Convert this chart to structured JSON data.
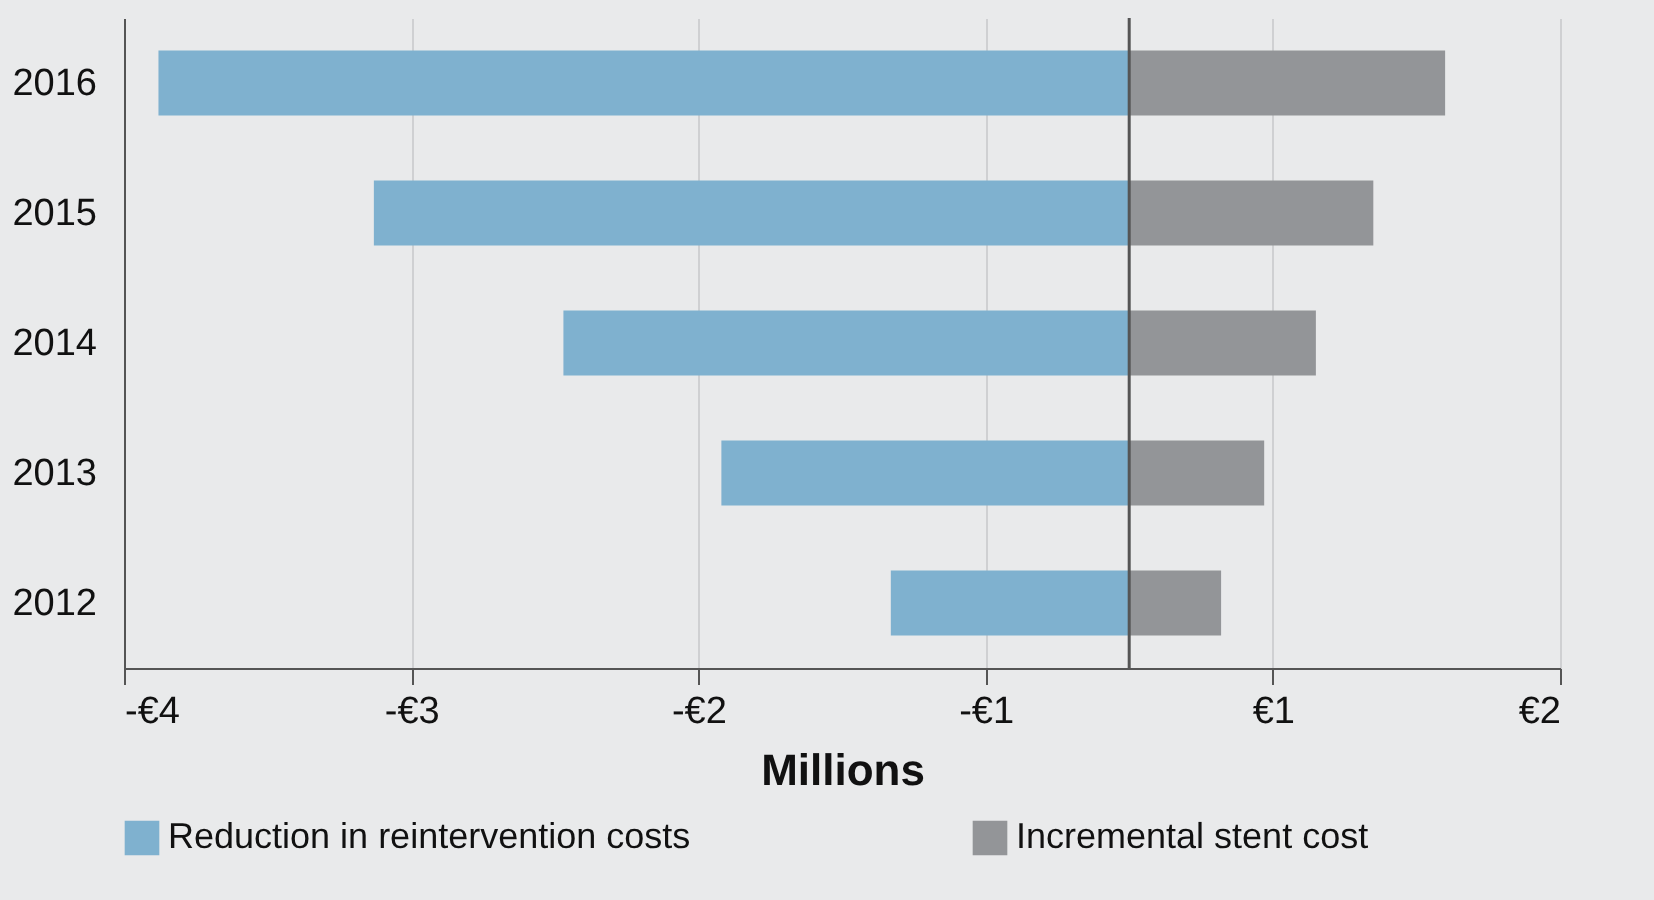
{
  "chart_data": {
    "type": "bar",
    "orientation": "horizontal",
    "stacked": true,
    "xlabel": "Millions",
    "categories": [
      "2016",
      "2015",
      "2014",
      "2013",
      "2012"
    ],
    "series": [
      {
        "name": "Reduction in reintervention costs",
        "color": "#7fb1cf",
        "values": [
          -3.38,
          -2.63,
          -1.97,
          -1.42,
          -0.83
        ]
      },
      {
        "name": "Incremental stent cost",
        "color": "#939598",
        "values": [
          1.1,
          0.85,
          0.65,
          0.47,
          0.32
        ]
      }
    ],
    "xlim": [
      -3.5,
      1.5
    ],
    "xticks": [
      {
        "value": -3.5,
        "label": "-€4"
      },
      {
        "value": -2.5,
        "label": "-€3"
      },
      {
        "value": -1.5,
        "label": "-€2"
      },
      {
        "value": -0.5,
        "label": "-€1"
      },
      {
        "value": 0.5,
        "label": "€1"
      },
      {
        "value": 1.5,
        "label": "€2"
      }
    ],
    "ref_lines": [
      {
        "axis": "x",
        "value": 0,
        "color": "#555555"
      }
    ],
    "grid": "x",
    "legend": "bottom"
  }
}
